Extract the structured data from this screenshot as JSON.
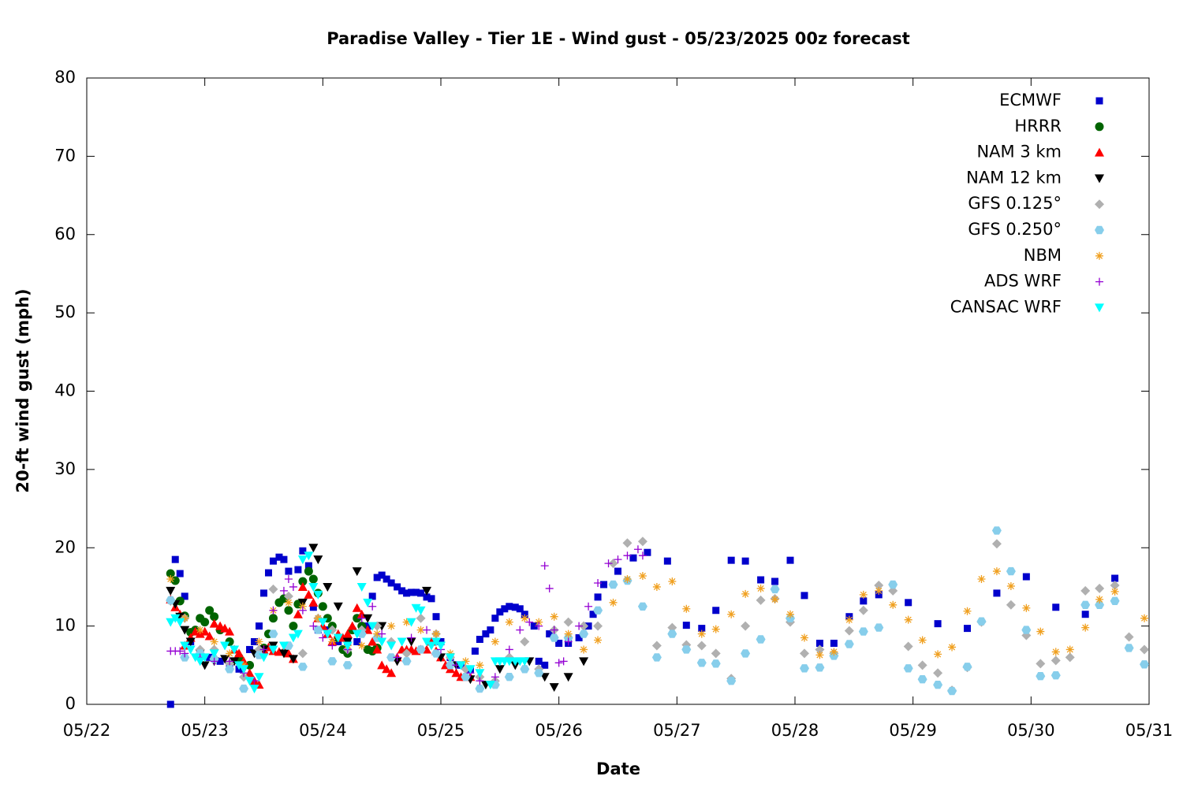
{
  "chart_data": {
    "type": "scatter",
    "title": "Paradise Valley - Tier 1E - Wind gust - 05/23/2025 00z forecast",
    "x_label": "Date",
    "y_label": "20-ft wind gust (mph)",
    "xlim": [
      0,
      9
    ],
    "ylim": [
      0,
      80
    ],
    "xticks": [
      {
        "value": 0,
        "label": "05/22"
      },
      {
        "value": 1,
        "label": "05/23"
      },
      {
        "value": 2,
        "label": "05/24"
      },
      {
        "value": 3,
        "label": "05/25"
      },
      {
        "value": 4,
        "label": "05/26"
      },
      {
        "value": 5,
        "label": "05/27"
      },
      {
        "value": 6,
        "label": "05/28"
      },
      {
        "value": 7,
        "label": "05/29"
      },
      {
        "value": 8,
        "label": "05/30"
      },
      {
        "value": 9,
        "label": "05/31"
      }
    ],
    "yticks": [
      0,
      10,
      20,
      30,
      40,
      50,
      60,
      70,
      80
    ],
    "grid": false,
    "legend": "upper right",
    "series": [
      {
        "name": "ECMWF",
        "color": "#0000cc",
        "marker": "square",
        "x": [
          0.71,
          0.75,
          0.79,
          0.83,
          0.88,
          0.96,
          1.04,
          1.13,
          1.21,
          1.29,
          1.38,
          1.42,
          1.46,
          1.5,
          1.54,
          1.58,
          1.63,
          1.67,
          1.71,
          1.79,
          1.83,
          1.88,
          1.92,
          1.96,
          2.04,
          2.13,
          2.21,
          2.29,
          2.38,
          2.42,
          2.46,
          2.5,
          2.54,
          2.58,
          2.63,
          2.67,
          2.71,
          2.75,
          2.79,
          2.83,
          2.88,
          2.92,
          2.96,
          3.0,
          3.08,
          3.17,
          3.25,
          3.29,
          3.33,
          3.38,
          3.42,
          3.46,
          3.5,
          3.54,
          3.58,
          3.63,
          3.67,
          3.71,
          3.79,
          3.83,
          3.88,
          3.92,
          4.0,
          4.08,
          4.17,
          4.25,
          4.29,
          4.33,
          4.38,
          4.5,
          4.63,
          4.75,
          4.92,
          5.08,
          5.21,
          5.33,
          5.46,
          5.58,
          5.71,
          5.83,
          5.96,
          6.08,
          6.21,
          6.33,
          6.46,
          6.58,
          6.71,
          6.96,
          7.21,
          7.46,
          7.71,
          7.96,
          8.21,
          8.46,
          8.71
        ],
        "values": [
          0,
          18.5,
          16.7,
          13.8,
          8,
          6.5,
          6,
          5.5,
          5,
          4.5,
          7,
          8,
          10,
          14.2,
          16.8,
          18.3,
          18.8,
          18.5,
          17,
          17.2,
          19.6,
          17.7,
          12.4,
          9.5,
          9.5,
          8,
          8,
          8,
          10,
          13.8,
          16.2,
          16.5,
          16,
          15.5,
          15,
          14.5,
          14.2,
          14.3,
          14.3,
          14.2,
          13.7,
          13.5,
          11.2,
          8,
          6,
          5,
          4.5,
          6.8,
          8.3,
          9,
          9.5,
          11,
          11.8,
          12.2,
          12.5,
          12.4,
          12.2,
          11.5,
          10,
          5.5,
          5,
          9,
          7.8,
          7.8,
          8.5,
          10,
          11.5,
          13.7,
          15.3,
          17,
          18.7,
          19.4,
          18.3,
          10.1,
          9.7,
          12,
          18.4,
          18.3,
          15.9,
          15.7,
          18.4,
          13.9,
          7.8,
          7.8,
          11.2,
          13.2,
          14,
          13,
          10.3,
          9.7,
          14.2,
          16.3,
          12.4,
          11.5,
          16.1
        ]
      },
      {
        "name": "HRRR",
        "color": "#006400",
        "marker": "circle",
        "x": [
          0.71,
          0.75,
          0.79,
          0.83,
          0.88,
          0.92,
          0.96,
          1.0,
          1.04,
          1.08,
          1.13,
          1.21,
          1.29,
          1.38,
          1.46,
          1.5,
          1.54,
          1.58,
          1.63,
          1.67,
          1.71,
          1.75,
          1.79,
          1.83,
          1.88,
          1.92,
          1.96,
          2.0,
          2.04,
          2.08,
          2.13,
          2.17,
          2.21,
          2.25,
          2.29,
          2.33,
          2.38,
          2.42,
          2.46
        ],
        "values": [
          16.7,
          15.8,
          13.2,
          11.3,
          9.2,
          9.5,
          11,
          10.5,
          12,
          11.2,
          9.5,
          8,
          6,
          5,
          6.5,
          7.2,
          9,
          11,
          13,
          13.5,
          12,
          10,
          12.8,
          15.7,
          17,
          16,
          14.2,
          12.5,
          11,
          10,
          8.5,
          7,
          6.5,
          9.5,
          11,
          10,
          7,
          6.8,
          7.2
        ]
      },
      {
        "name": "NAM 3 km",
        "color": "#ff0000",
        "marker": "triangle-up",
        "x": [
          0.71,
          0.75,
          0.79,
          0.83,
          0.88,
          0.92,
          0.96,
          1.0,
          1.04,
          1.08,
          1.13,
          1.17,
          1.21,
          1.25,
          1.29,
          1.33,
          1.38,
          1.42,
          1.46,
          1.5,
          1.54,
          1.58,
          1.63,
          1.67,
          1.71,
          1.75,
          1.79,
          1.83,
          1.88,
          1.92,
          1.96,
          2.0,
          2.04,
          2.08,
          2.13,
          2.17,
          2.21,
          2.25,
          2.29,
          2.33,
          2.38,
          2.42,
          2.46,
          2.5,
          2.54,
          2.58,
          2.63,
          2.67,
          2.71,
          2.75,
          2.79,
          2.83,
          2.88,
          2.92,
          2.96,
          3.0,
          3.04,
          3.08,
          3.13,
          3.17,
          3.21,
          3.25
        ],
        "values": [
          13.4,
          12.4,
          11.5,
          7.5,
          8.5,
          9.3,
          9,
          9.3,
          8.7,
          10.3,
          10,
          9.7,
          9.3,
          7,
          6.5,
          5.5,
          4,
          3,
          2.5,
          7,
          7.3,
          6.8,
          6.7,
          6.8,
          6.5,
          5.8,
          11.5,
          15,
          14,
          13,
          11,
          10,
          9,
          8,
          9,
          8.5,
          9,
          10,
          12.3,
          11.5,
          9.5,
          8,
          7,
          5,
          4.5,
          4,
          6,
          7,
          7,
          7,
          6.8,
          7,
          7,
          8,
          6.8,
          6,
          5,
          4.5,
          4,
          3.5,
          3.5,
          3.5
        ]
      },
      {
        "name": "NAM 12 km",
        "color": "#000000",
        "marker": "triangle-down",
        "x": [
          0.71,
          0.75,
          0.79,
          0.83,
          0.88,
          0.96,
          1.0,
          1.08,
          1.17,
          1.25,
          1.33,
          1.42,
          1.5,
          1.58,
          1.67,
          1.75,
          1.83,
          1.92,
          1.96,
          2.04,
          2.13,
          2.21,
          2.29,
          2.38,
          2.5,
          2.63,
          2.75,
          2.88,
          3.0,
          3.13,
          3.25,
          3.38,
          3.5,
          3.63,
          3.75,
          3.88,
          3.96,
          4.08,
          4.21
        ],
        "values": [
          14.5,
          12.8,
          11.2,
          9.5,
          8,
          6.5,
          5,
          5.5,
          5.8,
          5.5,
          4.5,
          6.5,
          7,
          7.5,
          6.5,
          5.8,
          13,
          20,
          18.5,
          15,
          12.5,
          8,
          17,
          11,
          10,
          5.5,
          8,
          14.5,
          6,
          5,
          3.2,
          2.5,
          4.5,
          5,
          5.5,
          3.5,
          2.2,
          3.5,
          5.5
        ]
      },
      {
        "name": "GFS 0.125°",
        "color": "#b0b0b0",
        "marker": "diamond",
        "x": [
          0.71,
          0.83,
          0.96,
          1.08,
          1.21,
          1.33,
          1.46,
          1.58,
          1.71,
          1.83,
          1.96,
          2.08,
          2.21,
          2.33,
          2.46,
          2.58,
          2.71,
          2.83,
          2.96,
          3.08,
          3.21,
          3.33,
          3.46,
          3.58,
          3.71,
          3.83,
          3.96,
          4.08,
          4.21,
          4.33,
          4.46,
          4.58,
          4.71,
          4.83,
          4.96,
          5.08,
          5.21,
          5.33,
          5.46,
          5.58,
          5.71,
          5.83,
          5.96,
          6.08,
          6.21,
          6.33,
          6.46,
          6.58,
          6.71,
          6.83,
          6.96,
          7.08,
          7.21,
          7.33,
          7.46,
          7.58,
          7.71,
          7.83,
          7.96,
          8.08,
          8.21,
          8.33,
          8.46,
          8.58,
          8.71,
          8.83,
          8.96
        ],
        "values": [
          13.2,
          11,
          7,
          7,
          5.2,
          3.5,
          7,
          14.7,
          13.8,
          6.5,
          11,
          9.5,
          7,
          9.5,
          10,
          8,
          6.5,
          11,
          9,
          6,
          4.5,
          3.5,
          3,
          6,
          8,
          4.5,
          9.5,
          10.5,
          10,
          10,
          18,
          20.6,
          20.8,
          7.5,
          9.8,
          7.6,
          7.5,
          6.5,
          3.3,
          10,
          13.3,
          13.5,
          10.5,
          6.5,
          7,
          6.5,
          9.4,
          12,
          15.2,
          14.5,
          7.4,
          5,
          4,
          1.8,
          4.7,
          10.5,
          20.5,
          12.7,
          8.8,
          5.2,
          5.6,
          6,
          14.5,
          14.8,
          15.2,
          8.6,
          7
        ]
      },
      {
        "name": "GFS 0.250°",
        "color": "#87ceeb",
        "marker": "hexagon",
        "x": [
          0.71,
          0.83,
          0.96,
          1.08,
          1.21,
          1.33,
          1.46,
          1.58,
          1.71,
          1.83,
          1.96,
          2.08,
          2.21,
          2.33,
          2.46,
          2.58,
          2.71,
          2.83,
          2.96,
          3.08,
          3.21,
          3.33,
          3.46,
          3.58,
          3.71,
          3.83,
          3.96,
          4.08,
          4.21,
          4.33,
          4.46,
          4.58,
          4.71,
          4.83,
          4.96,
          5.08,
          5.21,
          5.33,
          5.46,
          5.58,
          5.71,
          5.83,
          5.96,
          6.08,
          6.21,
          6.33,
          6.46,
          6.58,
          6.71,
          6.83,
          6.96,
          7.08,
          7.21,
          7.33,
          7.46,
          7.58,
          7.71,
          7.83,
          7.96,
          8.08,
          8.21,
          8.46,
          8.58,
          8.71,
          8.83,
          8.96
        ],
        "values": [
          13.3,
          6,
          6.5,
          5.8,
          4.5,
          2,
          6.3,
          9,
          7.5,
          4.8,
          9.5,
          5.5,
          5,
          9,
          8.5,
          6,
          5.5,
          7,
          6.5,
          5,
          3.5,
          2,
          2.5,
          3.5,
          4.5,
          4,
          8.5,
          8.5,
          9,
          12,
          15.3,
          15.8,
          12.5,
          6,
          9,
          7,
          5.3,
          5.2,
          3,
          6.5,
          8.3,
          14.7,
          11,
          4.6,
          4.7,
          6.2,
          7.7,
          9.3,
          9.8,
          15.3,
          4.6,
          3.2,
          2.5,
          1.7,
          4.8,
          10.6,
          22.2,
          17,
          9.5,
          3.6,
          3.7,
          12.7,
          12.7,
          13.2,
          7.2,
          5.1
        ]
      },
      {
        "name": "NBM",
        "color": "#f0a020",
        "marker": "asterisk",
        "x": [
          0.71,
          0.83,
          0.96,
          1.08,
          1.21,
          1.33,
          1.46,
          1.58,
          1.71,
          1.83,
          1.96,
          2.08,
          2.21,
          2.33,
          2.46,
          2.58,
          2.71,
          2.83,
          2.96,
          3.08,
          3.21,
          3.33,
          3.46,
          3.58,
          3.71,
          3.83,
          3.96,
          4.08,
          4.21,
          4.33,
          4.46,
          4.58,
          4.71,
          4.83,
          4.96,
          5.08,
          5.21,
          5.33,
          5.46,
          5.58,
          5.71,
          5.83,
          5.96,
          6.08,
          6.21,
          6.33,
          6.46,
          6.58,
          6.71,
          6.83,
          6.96,
          7.08,
          7.21,
          7.33,
          7.46,
          7.58,
          7.71,
          7.83,
          7.96,
          8.08,
          8.21,
          8.33,
          8.46,
          8.58,
          8.71,
          8.96
        ],
        "values": [
          16,
          11,
          9.5,
          8,
          6.5,
          5,
          8,
          12,
          13,
          12.5,
          11,
          8,
          7.5,
          7.5,
          9,
          10,
          10.5,
          9.5,
          9,
          6.5,
          5.5,
          5,
          8,
          10.5,
          11,
          10.5,
          11.2,
          9,
          7,
          8.2,
          13,
          16,
          16.4,
          15,
          15.7,
          12.2,
          9,
          9.6,
          11.5,
          14.1,
          14.8,
          13.4,
          11.5,
          8.5,
          6.3,
          6.7,
          10.8,
          14,
          14.5,
          12.7,
          10.8,
          8.2,
          6.4,
          7.3,
          11.9,
          16,
          17,
          15.1,
          12.3,
          9.3,
          6.7,
          7,
          9.8,
          13.4,
          14.4,
          11
        ]
      },
      {
        "name": "ADS WRF",
        "color": "#9400d3",
        "marker": "plus",
        "x": [
          0.71,
          0.75,
          0.79,
          0.83,
          0.96,
          1.08,
          1.21,
          1.33,
          1.42,
          1.5,
          1.58,
          1.67,
          1.71,
          1.75,
          1.83,
          1.92,
          2.0,
          2.08,
          2.21,
          2.33,
          2.42,
          2.5,
          2.63,
          2.75,
          2.88,
          3.0,
          3.13,
          3.25,
          3.33,
          3.46,
          3.58,
          3.67,
          3.75,
          3.83,
          3.88,
          3.92,
          3.96,
          4.0,
          4.04,
          4.08,
          4.17,
          4.25,
          4.33,
          4.42,
          4.5,
          4.58,
          4.67,
          4.71
        ],
        "values": [
          6.8,
          6.8,
          6.8,
          6.5,
          6,
          5.5,
          5.5,
          4,
          3,
          7,
          12,
          14.5,
          16,
          15,
          12,
          10,
          8.5,
          7.5,
          7,
          11,
          12.5,
          9,
          6,
          8.5,
          9.5,
          7,
          5,
          4,
          3,
          3.5,
          7,
          9.5,
          10.5,
          10,
          17.7,
          14.8,
          9.5,
          5.3,
          5.5,
          8,
          10,
          12.5,
          15.5,
          18,
          18.5,
          19,
          19.8,
          19
        ]
      },
      {
        "name": "CANSAC WRF",
        "color": "#00ffff",
        "marker": "triangle-down",
        "x": [
          0.71,
          0.75,
          0.79,
          0.83,
          0.88,
          0.92,
          0.96,
          1.0,
          1.08,
          1.17,
          1.25,
          1.29,
          1.33,
          1.38,
          1.42,
          1.46,
          1.5,
          1.58,
          1.67,
          1.75,
          1.79,
          1.83,
          1.88,
          1.92,
          1.96,
          2.0,
          2.04,
          2.13,
          2.21,
          2.29,
          2.33,
          2.38,
          2.42,
          2.5,
          2.58,
          2.67,
          2.75,
          2.79,
          2.83,
          2.88,
          2.92,
          2.96,
          3.0,
          3.08,
          3.17,
          3.25,
          3.33,
          3.42,
          3.46,
          3.5,
          3.54,
          3.58,
          3.63,
          3.67,
          3.71
        ],
        "values": [
          10.5,
          11,
          10.5,
          7.5,
          7,
          6,
          5.5,
          6,
          6.5,
          7.5,
          7,
          5,
          4.5,
          3,
          2,
          3.5,
          6,
          7,
          7.5,
          8.5,
          9,
          18.5,
          19,
          15,
          14,
          10.5,
          9,
          8.5,
          7.5,
          9,
          15,
          13,
          10,
          8,
          7.5,
          8,
          10.5,
          12.3,
          12,
          8,
          7.5,
          8,
          7.5,
          6,
          5,
          4.5,
          4,
          2.5,
          5.5,
          5.5,
          5.5,
          5.5,
          5.5,
          5.5,
          5.5
        ]
      }
    ]
  }
}
